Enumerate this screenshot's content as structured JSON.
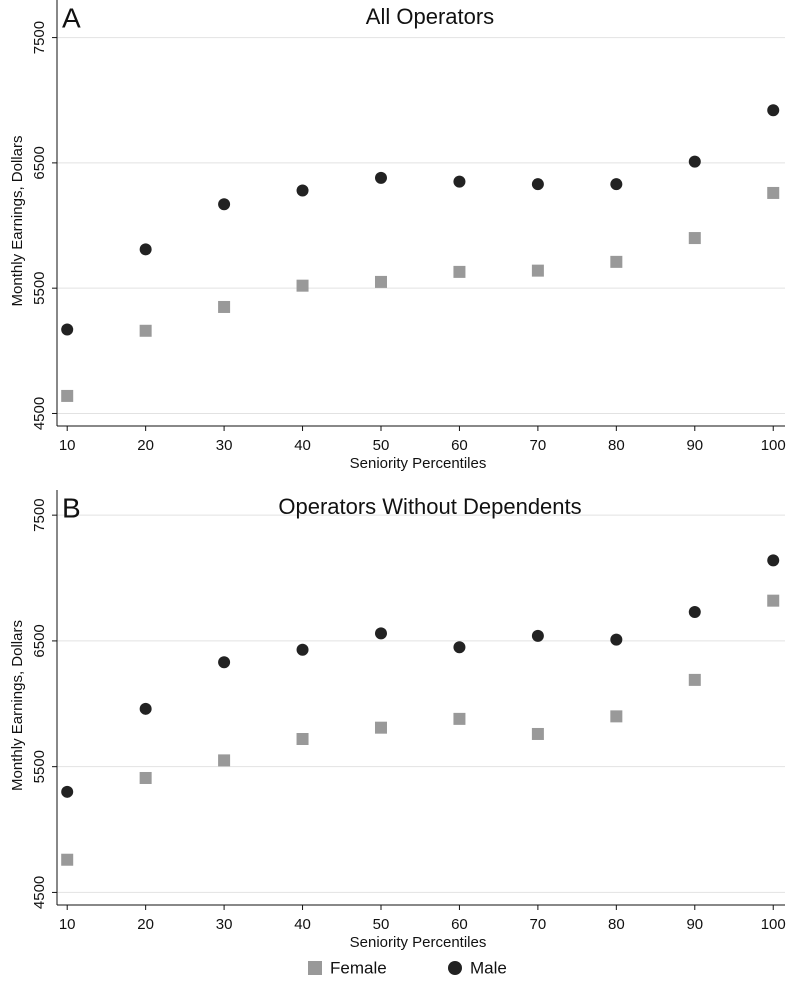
{
  "chart_data": [
    {
      "type": "scatter",
      "panel_label": "A",
      "title": "All Operators",
      "x_label": "Seniority Percentiles",
      "y_label": "Monthly Earnings, Dollars",
      "x": [
        10,
        20,
        30,
        40,
        50,
        60,
        70,
        80,
        90,
        100
      ],
      "xlim": [
        8.7,
        101.5
      ],
      "xticks": [
        10,
        20,
        30,
        40,
        50,
        60,
        70,
        80,
        90,
        100
      ],
      "ylim": [
        4400,
        7800
      ],
      "yticks": [
        4500,
        5500,
        6500,
        7500
      ],
      "grid": true,
      "series": [
        {
          "name": "Female",
          "color": "#999999",
          "marker": "square",
          "values": [
            4640,
            5160,
            5350,
            5520,
            5550,
            5630,
            5640,
            5710,
            5900,
            6260
          ]
        },
        {
          "name": "Male",
          "color": "#222222",
          "marker": "circle",
          "values": [
            5170,
            5810,
            6170,
            6280,
            6380,
            6350,
            6330,
            6330,
            6510,
            6920
          ]
        }
      ]
    },
    {
      "type": "scatter",
      "panel_label": "B",
      "title": "Operators Without Dependents",
      "x_label": "Seniority Percentiles",
      "y_label": "Monthly Earnings, Dollars",
      "x": [
        10,
        20,
        30,
        40,
        50,
        60,
        70,
        80,
        90,
        100
      ],
      "xlim": [
        8.7,
        101.5
      ],
      "xticks": [
        10,
        20,
        30,
        40,
        50,
        60,
        70,
        80,
        90,
        100
      ],
      "ylim": [
        4400,
        7700
      ],
      "yticks": [
        4500,
        5500,
        6500,
        7500
      ],
      "grid": true,
      "series": [
        {
          "color": "#999999",
          "marker": "square",
          "values": [
            4760,
            5410,
            5550,
            5720,
            5810,
            5880,
            5760,
            5900,
            6190,
            6820
          ]
        },
        {
          "color": "#222222",
          "marker": "circle",
          "values": [
            5300,
            5960,
            6330,
            6430,
            6560,
            6450,
            6540,
            6510,
            6730,
            7140
          ]
        }
      ]
    }
  ]
}
